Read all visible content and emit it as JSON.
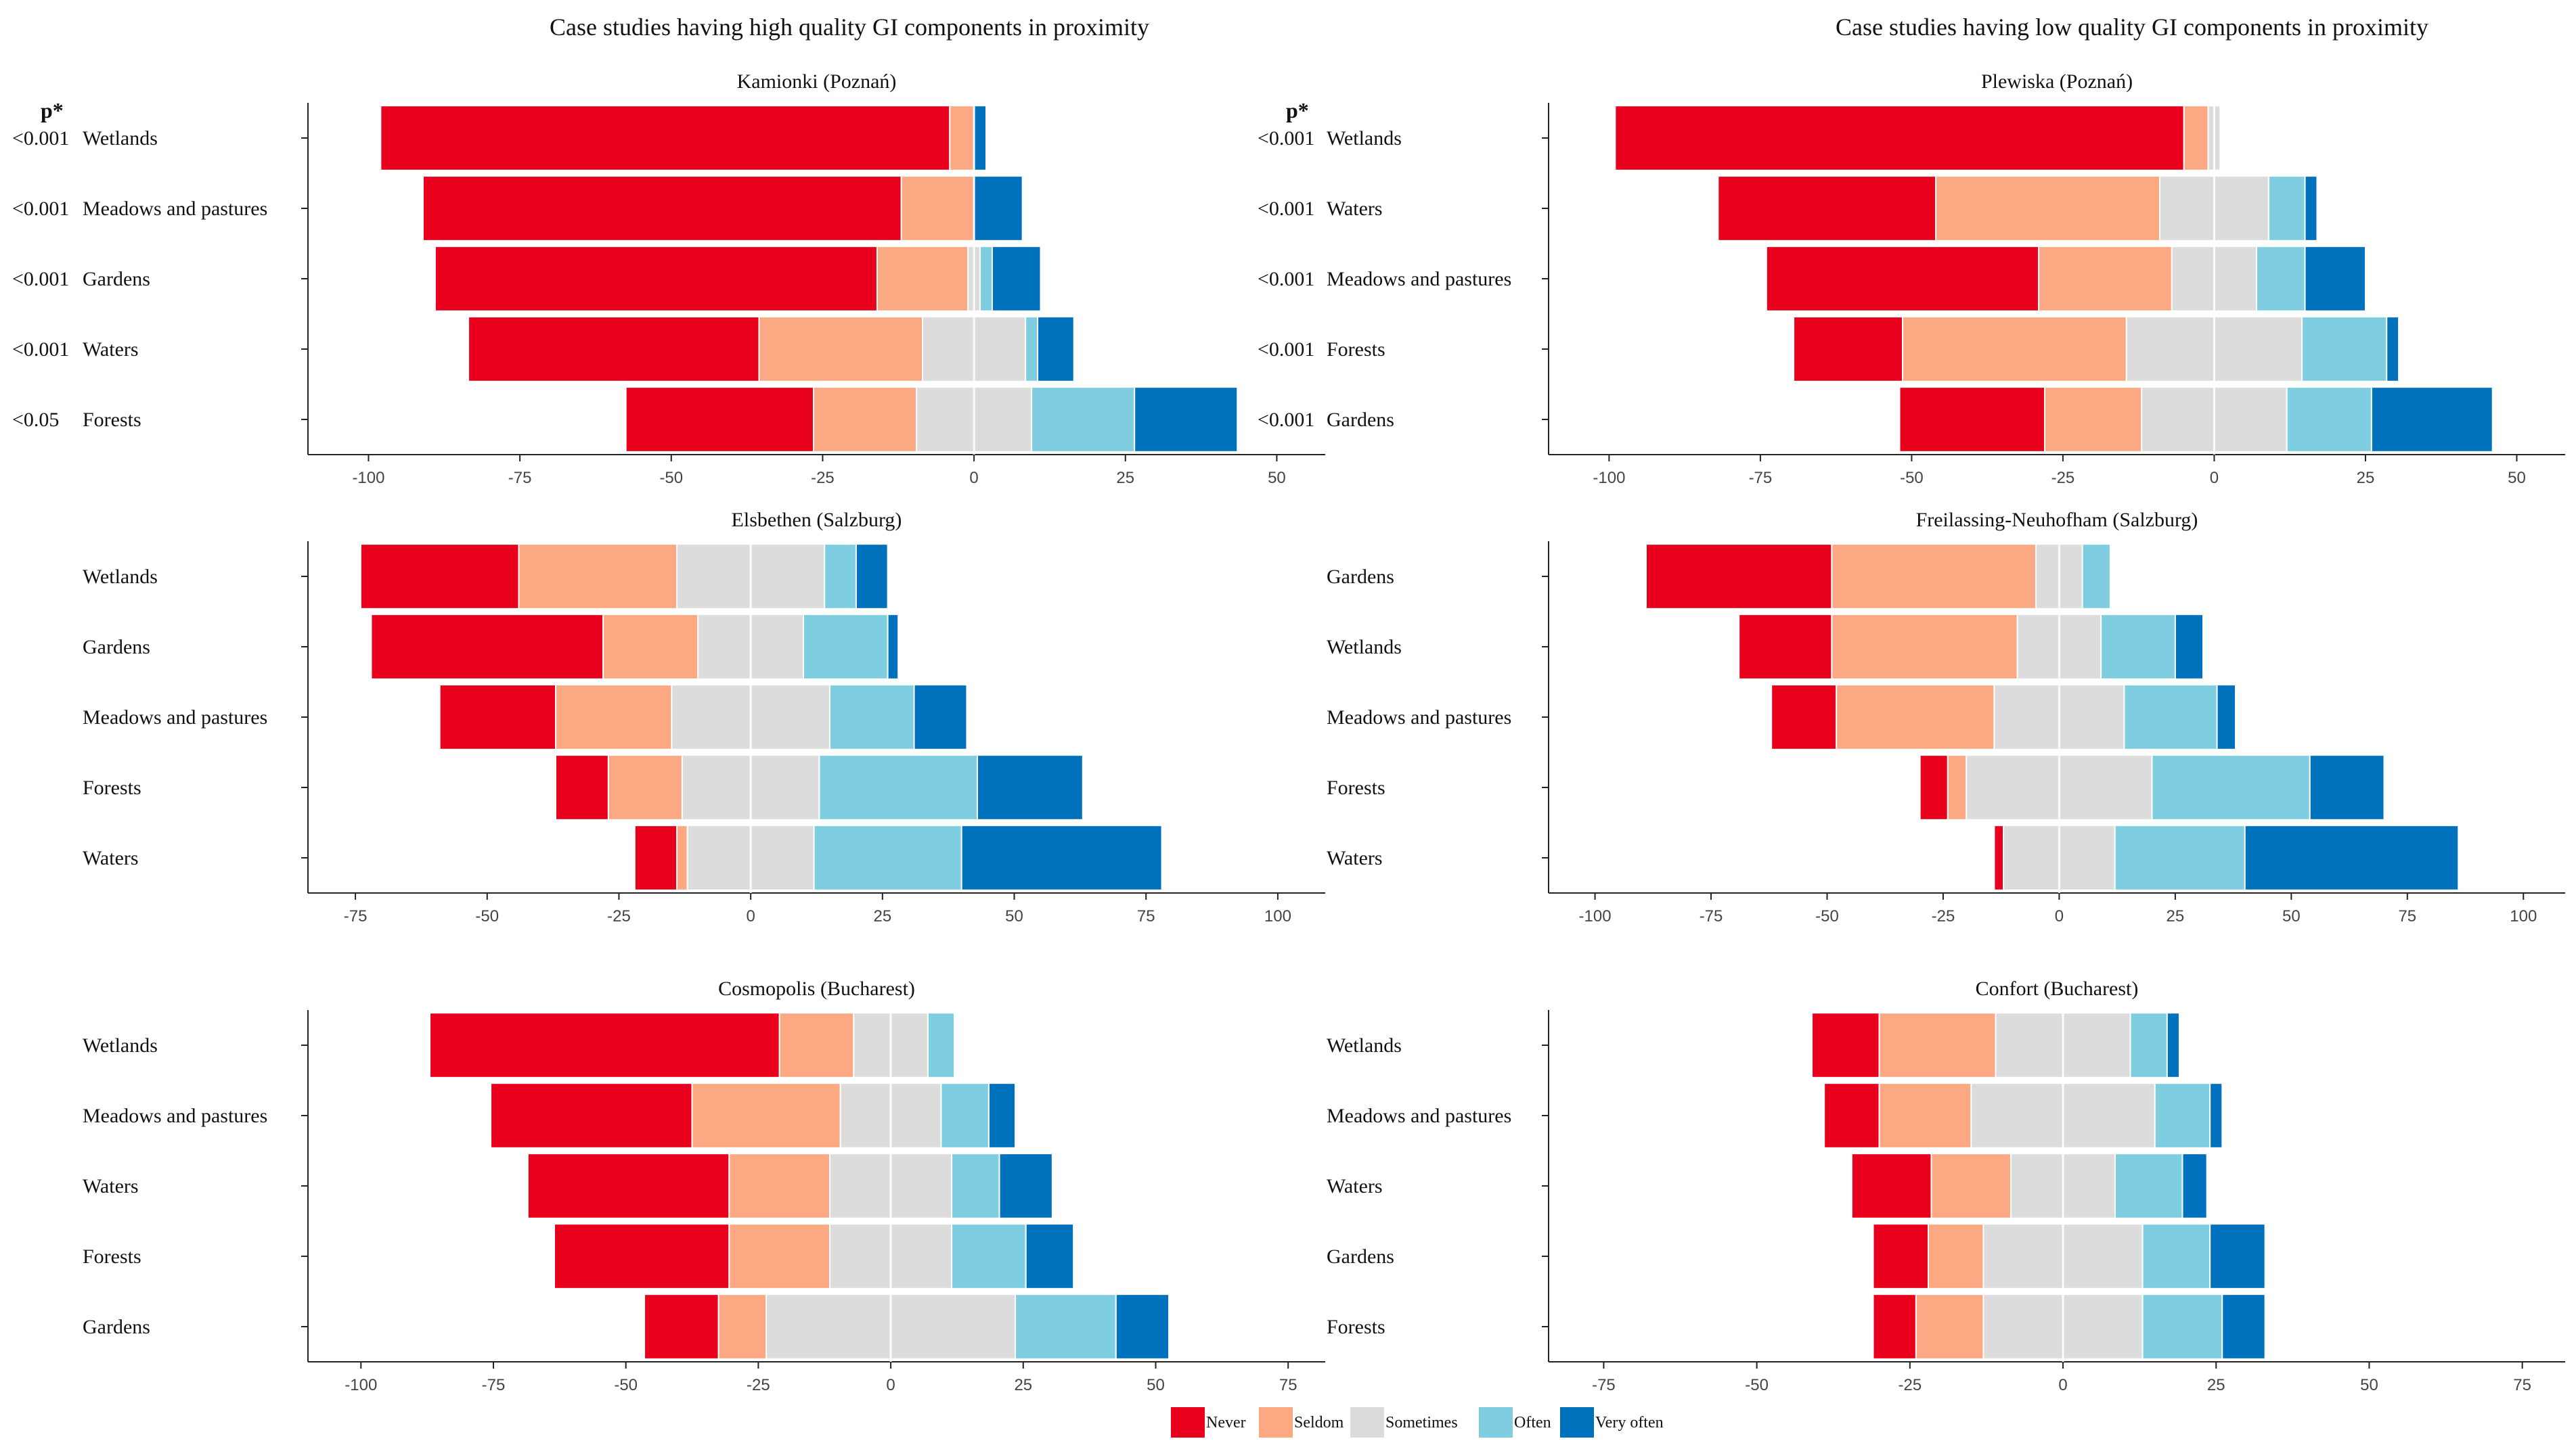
{
  "headers": {
    "left": "Case studies having high quality GI components in proximity",
    "right": "Case studies having low quality GI components in proximity"
  },
  "p_header": "p*",
  "colors": {
    "Never": "#e8001c",
    "Seldom": "#fca882",
    "Sometimes": "#dcdcdc",
    "Often": "#7ecde0",
    "Very often": "#0072bd"
  },
  "legend": [
    "Never",
    "Seldom",
    "Sometimes",
    "Often",
    "Very often"
  ],
  "chart_data": [
    {
      "type": "bar",
      "stacking": "diverging-horizontal",
      "title": "Kamionki (Poznań)",
      "xlim": [
        -110,
        58
      ],
      "xticks": [
        -100,
        -75,
        -50,
        -25,
        0,
        25,
        50
      ],
      "series_order": [
        "Never",
        "Seldom",
        "Sometimes",
        "Often",
        "Very often"
      ],
      "categories": [
        "Wetlands",
        "Meadows and pastures",
        "Gardens",
        "Waters",
        "Forests"
      ],
      "p_values": [
        "<0.001",
        "<0.001",
        "<0.001",
        "<0.001",
        "<0.05"
      ],
      "values": [
        [
          94,
          4,
          0,
          0,
          2
        ],
        [
          79,
          12,
          0,
          0,
          8
        ],
        [
          73,
          15,
          2,
          2,
          8
        ],
        [
          48,
          27,
          17,
          2,
          6
        ],
        [
          31,
          17,
          19,
          17,
          17
        ]
      ]
    },
    {
      "type": "bar",
      "stacking": "diverging-horizontal",
      "title": "Plewiska (Poznań)",
      "xlim": [
        -110,
        58
      ],
      "xticks": [
        -100,
        -75,
        -50,
        -25,
        0,
        25,
        50
      ],
      "series_order": [
        "Never",
        "Seldom",
        "Sometimes",
        "Often",
        "Very often"
      ],
      "categories": [
        "Wetlands",
        "Waters",
        "Meadows and pastures",
        "Forests",
        "Gardens"
      ],
      "p_values": [
        "<0.001",
        "<0.001",
        "<0.001",
        "<0.001",
        "<0.001"
      ],
      "values": [
        [
          94,
          4,
          2,
          0,
          0
        ],
        [
          36,
          37,
          18,
          6,
          2
        ],
        [
          45,
          22,
          14,
          8,
          10
        ],
        [
          18,
          37,
          29,
          14,
          2
        ],
        [
          24,
          16,
          24,
          14,
          20
        ]
      ]
    },
    {
      "type": "bar",
      "stacking": "diverging-horizontal",
      "title": "Elsbethen (Salzburg)",
      "xlim": [
        -84,
        109
      ],
      "xticks": [
        -75,
        -50,
        -25,
        0,
        25,
        50,
        75,
        100
      ],
      "series_order": [
        "Never",
        "Seldom",
        "Sometimes",
        "Often",
        "Very often"
      ],
      "categories": [
        "Wetlands",
        "Gardens",
        "Meadows and pastures",
        "Forests",
        "Waters"
      ],
      "p_values": [],
      "values": [
        [
          30,
          30,
          28,
          6,
          6
        ],
        [
          44,
          18,
          20,
          16,
          2
        ],
        [
          22,
          22,
          30,
          16,
          10
        ],
        [
          10,
          14,
          26,
          30,
          20
        ],
        [
          8,
          2,
          24,
          28,
          38
        ]
      ]
    },
    {
      "type": "bar",
      "stacking": "diverging-horizontal",
      "title": "Freilassing-Neuhofham (Salzburg)",
      "xlim": [
        -110,
        109
      ],
      "xticks": [
        -100,
        -75,
        -50,
        -25,
        0,
        25,
        50,
        75,
        100
      ],
      "series_order": [
        "Never",
        "Seldom",
        "Sometimes",
        "Often",
        "Very often"
      ],
      "categories": [
        "Gardens",
        "Wetlands",
        "Meadows and pastures",
        "Forests",
        "Waters"
      ],
      "p_values": [],
      "values": [
        [
          40,
          44,
          10,
          6,
          0
        ],
        [
          20,
          40,
          18,
          16,
          6
        ],
        [
          14,
          34,
          28,
          20,
          4
        ],
        [
          6,
          4,
          40,
          34,
          16
        ],
        [
          2,
          0,
          24,
          28,
          46
        ]
      ]
    },
    {
      "type": "bar",
      "stacking": "diverging-horizontal",
      "title": "Cosmopolis (Bucharest)",
      "xlim": [
        -110,
        82
      ],
      "xticks": [
        -100,
        -75,
        -50,
        -25,
        0,
        25,
        50,
        75
      ],
      "series_order": [
        "Never",
        "Seldom",
        "Sometimes",
        "Often",
        "Very often"
      ],
      "categories": [
        "Wetlands",
        "Meadows and pastures",
        "Waters",
        "Forests",
        "Gardens"
      ],
      "p_values": [],
      "values": [
        [
          66,
          14,
          14,
          5,
          0
        ],
        [
          38,
          28,
          19,
          9,
          5
        ],
        [
          38,
          19,
          23,
          9,
          10
        ],
        [
          33,
          19,
          23,
          14,
          9
        ],
        [
          14,
          9,
          47,
          19,
          10
        ]
      ]
    },
    {
      "type": "bar",
      "stacking": "diverging-horizontal",
      "title": "Confort (Bucharest)",
      "xlim": [
        -84,
        82
      ],
      "xticks": [
        -75,
        -50,
        -25,
        0,
        25,
        50,
        75
      ],
      "series_order": [
        "Never",
        "Seldom",
        "Sometimes",
        "Often",
        "Very often"
      ],
      "categories": [
        "Wetlands",
        "Meadows and pastures",
        "Waters",
        "Gardens",
        "Forests"
      ],
      "p_values": [],
      "values": [
        [
          11,
          19,
          22,
          6,
          2
        ],
        [
          9,
          15,
          30,
          9,
          2
        ],
        [
          13,
          13,
          17,
          11,
          4
        ],
        [
          9,
          9,
          26,
          11,
          9
        ],
        [
          7,
          11,
          26,
          13,
          7
        ]
      ]
    }
  ]
}
